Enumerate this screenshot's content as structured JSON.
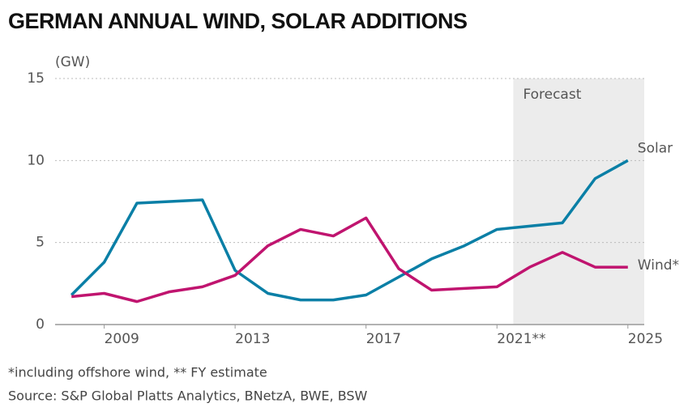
{
  "chart_data": {
    "type": "line",
    "title": "GERMAN ANNUAL WIND, SOLAR ADDITIONS",
    "y_label": "(GW)",
    "x": [
      2008,
      2009,
      2010,
      2011,
      2012,
      2013,
      2014,
      2015,
      2016,
      2017,
      2018,
      2019,
      2020,
      2021,
      2022,
      2023,
      2024,
      2025
    ],
    "series": [
      {
        "name": "Solar",
        "color": "#0a7fa6",
        "values": [
          1.8,
          3.8,
          7.4,
          7.5,
          7.6,
          3.3,
          1.9,
          1.5,
          1.5,
          1.8,
          2.9,
          4.0,
          4.8,
          5.8,
          6.0,
          6.2,
          8.9,
          10.0
        ]
      },
      {
        "name": "Wind*",
        "color": "#c0146f",
        "values": [
          1.7,
          1.9,
          1.4,
          2.0,
          2.3,
          3.0,
          4.8,
          5.8,
          5.4,
          6.5,
          3.4,
          2.1,
          2.2,
          2.3,
          3.5,
          4.4,
          3.5,
          3.5
        ]
      }
    ],
    "xlim": [
      2007.5,
      2025.5
    ],
    "xticks": [
      2009,
      2013,
      2017,
      {
        "value": 2021,
        "label": "2021**"
      },
      2025
    ],
    "ylim": [
      0,
      15
    ],
    "yticks": [
      0,
      5,
      10,
      15
    ],
    "grid": true,
    "shaded_region": {
      "label": "Forecast",
      "x": [
        2021.5,
        2025.5
      ],
      "color": "#ececec"
    },
    "footnotes": [
      "*including offshore wind, ** FY estimate",
      "Source: S&P Global Platts Analytics, BNetzA, BWE, BSW"
    ]
  }
}
